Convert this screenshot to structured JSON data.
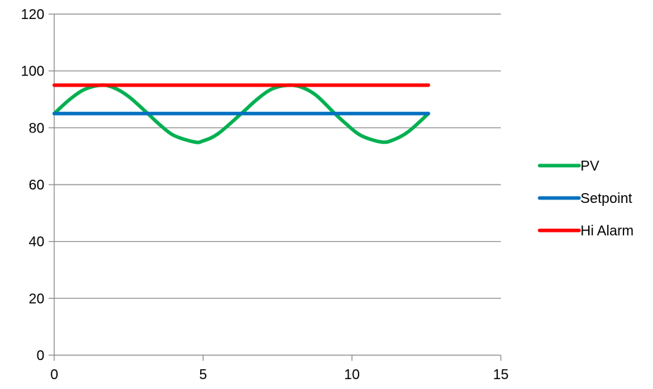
{
  "chart_data": {
    "type": "line",
    "title": "",
    "xlabel": "",
    "ylabel": "",
    "xlim": [
      0,
      15
    ],
    "ylim": [
      0,
      120
    ],
    "xticks": [
      "0",
      "5",
      "10",
      "15"
    ],
    "yticks": [
      "0",
      "20",
      "40",
      "60",
      "80",
      "100",
      "120"
    ],
    "grid": "horizontal",
    "legend_position": "right",
    "series": [
      {
        "name": "PV",
        "color": "#00b050",
        "x": [
          0,
          0.5,
          1.0,
          1.5708,
          2.0,
          2.5,
          3.1416,
          3.5,
          4.0,
          4.7124,
          5.0,
          5.5,
          6.2832,
          6.8,
          7.3,
          7.854,
          8.3,
          8.8,
          9.4248,
          9.8,
          10.3,
          10.9956,
          11.4,
          11.9,
          12.5664
        ],
        "y": [
          85,
          89.8,
          93.4,
          95,
          94.1,
          91,
          85,
          81.5,
          77.4,
          75,
          75.4,
          77.9,
          85,
          89.9,
          93.6,
          95,
          94.3,
          91.4,
          85,
          81.4,
          77.3,
          75,
          75.8,
          78.7,
          85
        ]
      },
      {
        "name": "Setpoint",
        "color": "#0070c0",
        "x": [
          0,
          12.5664
        ],
        "y": [
          85,
          85
        ]
      },
      {
        "name": "Hi Alarm",
        "color": "#ff0000",
        "x": [
          0,
          12.5664
        ],
        "y": [
          95,
          95
        ]
      }
    ]
  }
}
